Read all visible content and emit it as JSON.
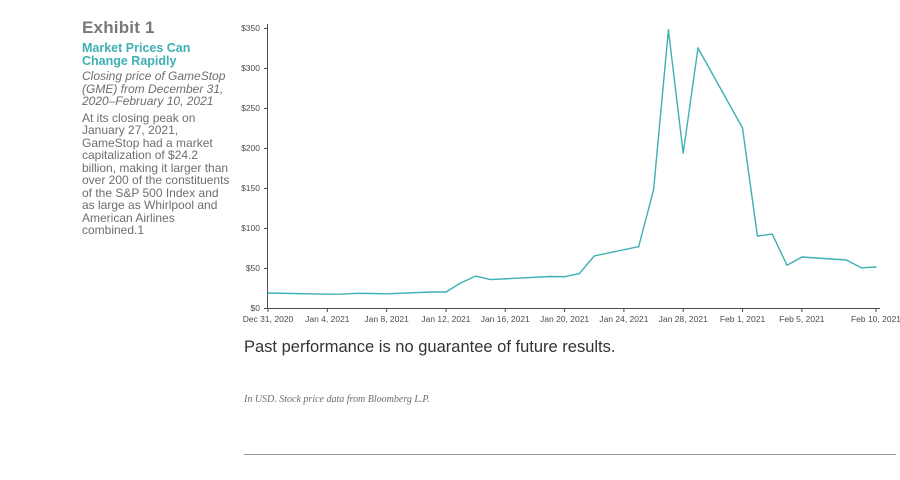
{
  "sidebar": {
    "exhibit": "Exhibit 1",
    "title": "Market Prices Can Change Rapidly",
    "description": "Closing price of GameStop (GME) from December 31, 2020–February 10, 2021",
    "note": "At its closing peak on January 27, 2021, GameStop had a market capitalization of $24.2 billion, making it larger than over 200 of the constituents of the S&P 500 Index and as large as Whirlpool and American Airlines combined.1"
  },
  "footer": {
    "disclaimer": "Past performance is no guarantee of future results.",
    "source": "In USD. Stock price data from Bloomberg L.P."
  },
  "chart_data": {
    "type": "line",
    "series": [
      {
        "color": "#3fb0b3",
        "points": [
          [
            "2020-12-31",
            18.75
          ],
          [
            "2021-01-04",
            17.25
          ],
          [
            "2021-01-05",
            17.37
          ],
          [
            "2021-01-06",
            18.36
          ],
          [
            "2021-01-07",
            18.08
          ],
          [
            "2021-01-08",
            17.69
          ],
          [
            "2021-01-11",
            19.94
          ],
          [
            "2021-01-12",
            19.95
          ],
          [
            "2021-01-13",
            31.4
          ],
          [
            "2021-01-14",
            39.91
          ],
          [
            "2021-01-15",
            35.5
          ],
          [
            "2021-01-19",
            39.36
          ],
          [
            "2021-01-20",
            39.12
          ],
          [
            "2021-01-21",
            43.03
          ],
          [
            "2021-01-22",
            65.01
          ],
          [
            "2021-01-25",
            76.79
          ],
          [
            "2021-01-26",
            147.98
          ],
          [
            "2021-01-27",
            347.51
          ],
          [
            "2021-01-28",
            193.6
          ],
          [
            "2021-01-29",
            325.0
          ],
          [
            "2021-02-01",
            225.0
          ],
          [
            "2021-02-02",
            90.0
          ],
          [
            "2021-02-03",
            92.41
          ],
          [
            "2021-02-04",
            53.5
          ],
          [
            "2021-02-05",
            63.77
          ],
          [
            "2021-02-08",
            60.0
          ],
          [
            "2021-02-09",
            50.31
          ],
          [
            "2021-02-10",
            51.2
          ]
        ]
      }
    ],
    "x_ticks": [
      {
        "date": "2020-12-31",
        "label": "Dec 31, 2020"
      },
      {
        "date": "2021-01-04",
        "label": "Jan 4, 2021"
      },
      {
        "date": "2021-01-08",
        "label": "Jan 8, 2021"
      },
      {
        "date": "2021-01-12",
        "label": "Jan 12, 2021"
      },
      {
        "date": "2021-01-16",
        "label": "Jan 16, 2021"
      },
      {
        "date": "2021-01-20",
        "label": "Jan 20, 2021"
      },
      {
        "date": "2021-01-24",
        "label": "Jan 24, 2021"
      },
      {
        "date": "2021-01-28",
        "label": "Jan 28, 2021"
      },
      {
        "date": "2021-02-01",
        "label": "Feb 1, 2021"
      },
      {
        "date": "2021-02-05",
        "label": "Feb 5, 2021"
      },
      {
        "date": "2021-02-10",
        "label": "Feb 10, 2021"
      }
    ],
    "y_ticks": [
      {
        "value": 0,
        "label": "$0"
      },
      {
        "value": 50,
        "label": "$50"
      },
      {
        "value": 100,
        "label": "$100"
      },
      {
        "value": 150,
        "label": "$150"
      },
      {
        "value": 200,
        "label": "$200"
      },
      {
        "value": 250,
        "label": "$250"
      },
      {
        "value": 300,
        "label": "$300"
      },
      {
        "value": 350,
        "label": "$350"
      }
    ],
    "ylim": [
      0,
      350
    ],
    "xlim": [
      "2020-12-31",
      "2021-02-10"
    ],
    "grid": false,
    "axis_color": "#4d4d4f"
  }
}
